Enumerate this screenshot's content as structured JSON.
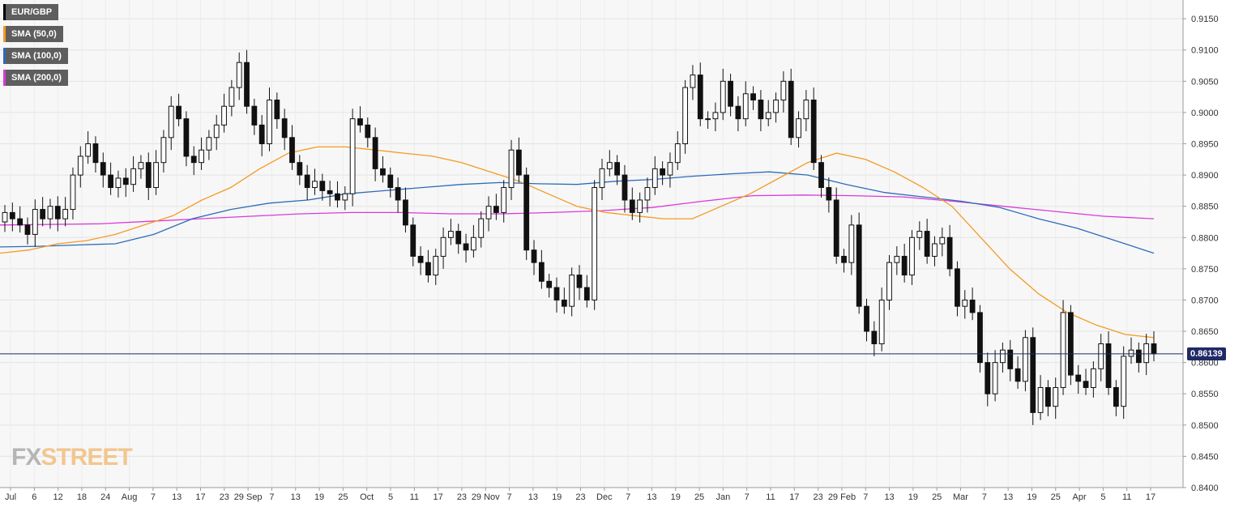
{
  "chart_data": {
    "type": "candlestick",
    "symbol": "EUR/GBP",
    "legend": [
      {
        "label": "EUR/GBP",
        "color": "#000000"
      },
      {
        "label": "SMA (50,0)",
        "color": "#f59a23"
      },
      {
        "label": "SMA (100,0)",
        "color": "#2e6bb8"
      },
      {
        "label": "SMA (200,0)",
        "color": "#d93ad9"
      }
    ],
    "ylim": [
      0.84,
      0.918
    ],
    "y_ticks": [
      "0.8400",
      "0.8450",
      "0.8500",
      "0.8550",
      "0.8600",
      "0.8650",
      "0.8700",
      "0.8750",
      "0.8800",
      "0.8850",
      "0.8900",
      "0.8950",
      "0.9000",
      "0.9050",
      "0.9100",
      "0.9150"
    ],
    "x_ticks": [
      "Jul",
      "6",
      "12",
      "18",
      "24",
      "Aug",
      "7",
      "13",
      "17",
      "23",
      "29 Sep",
      "7",
      "13",
      "19",
      "25",
      "Oct",
      "5",
      "11",
      "17",
      "23",
      "29 Nov",
      "7",
      "13",
      "19",
      "23",
      "Dec",
      "7",
      "13",
      "19",
      "25",
      "Jan",
      "7",
      "11",
      "17",
      "23",
      "29 Feb",
      "7",
      "13",
      "19",
      "25",
      "Mar",
      "7",
      "13",
      "19",
      "25",
      "Apr",
      "5",
      "11",
      "17"
    ],
    "current_price": 0.86139,
    "current_price_label": "0.86139",
    "candles_close": [
      0.884,
      0.883,
      0.882,
      0.8805,
      0.8845,
      0.883,
      0.885,
      0.883,
      0.8845,
      0.89,
      0.893,
      0.895,
      0.892,
      0.89,
      0.888,
      0.8895,
      0.8885,
      0.891,
      0.892,
      0.888,
      0.892,
      0.896,
      0.901,
      0.899,
      0.893,
      0.892,
      0.894,
      0.896,
      0.898,
      0.901,
      0.904,
      0.908,
      0.901,
      0.898,
      0.895,
      0.902,
      0.899,
      0.896,
      0.892,
      0.89,
      0.888,
      0.889,
      0.8875,
      0.887,
      0.886,
      0.887,
      0.899,
      0.898,
      0.896,
      0.891,
      0.89,
      0.888,
      0.886,
      0.882,
      0.877,
      0.876,
      0.874,
      0.877,
      0.88,
      0.881,
      0.879,
      0.878,
      0.88,
      0.883,
      0.885,
      0.884,
      0.888,
      0.894,
      0.89,
      0.878,
      0.876,
      0.873,
      0.872,
      0.87,
      0.869,
      0.874,
      0.872,
      0.87,
      0.888,
      0.891,
      0.892,
      0.89,
      0.886,
      0.884,
      0.886,
      0.888,
      0.891,
      0.89,
      0.892,
      0.895,
      0.904,
      0.906,
      0.899,
      0.899,
      0.9,
      0.905,
      0.901,
      0.899,
      0.903,
      0.902,
      0.899,
      0.9,
      0.902,
      0.905,
      0.896,
      0.899,
      0.902,
      0.892,
      0.888,
      0.886,
      0.877,
      0.876,
      0.882,
      0.869,
      0.865,
      0.863,
      0.87,
      0.876,
      0.877,
      0.874,
      0.88,
      0.881,
      0.877,
      0.879,
      0.88,
      0.875,
      0.869,
      0.87,
      0.868,
      0.86,
      0.855,
      0.86,
      0.862,
      0.859,
      0.857,
      0.864,
      0.852,
      0.856,
      0.853,
      0.856,
      0.868,
      0.858,
      0.857,
      0.856,
      0.859,
      0.863,
      0.856,
      0.853,
      0.861,
      0.862,
      0.86,
      0.863,
      0.8614
    ],
    "sma50": [
      0.8775,
      0.878,
      0.879,
      0.8795,
      0.8805,
      0.882,
      0.8835,
      0.886,
      0.888,
      0.891,
      0.8935,
      0.8945,
      0.8945,
      0.894,
      0.8935,
      0.893,
      0.892,
      0.8905,
      0.889,
      0.887,
      0.885,
      0.884,
      0.8835,
      0.883,
      0.883,
      0.885,
      0.887,
      0.8895,
      0.892,
      0.8935,
      0.8925,
      0.8905,
      0.888,
      0.885,
      0.88,
      0.875,
      0.871,
      0.868,
      0.866,
      0.8645,
      0.864
    ],
    "sma100": [
      0.8785,
      0.8786,
      0.8788,
      0.879,
      0.8805,
      0.883,
      0.8845,
      0.8855,
      0.886,
      0.887,
      0.8875,
      0.888,
      0.8885,
      0.8888,
      0.8886,
      0.8885,
      0.889,
      0.8893,
      0.8898,
      0.8902,
      0.8905,
      0.89,
      0.8885,
      0.8872,
      0.8865,
      0.8858,
      0.8848,
      0.883,
      0.8815,
      0.8795,
      0.8775
    ],
    "sma200": [
      0.882,
      0.8821,
      0.8822,
      0.8826,
      0.883,
      0.8834,
      0.8838,
      0.884,
      0.884,
      0.8838,
      0.8838,
      0.884,
      0.8843,
      0.8848,
      0.8858,
      0.8867,
      0.8868,
      0.8867,
      0.8865,
      0.8858,
      0.885,
      0.8842,
      0.8834,
      0.883
    ]
  },
  "branding": {
    "logo_left": "FX",
    "logo_right": "STREET"
  }
}
